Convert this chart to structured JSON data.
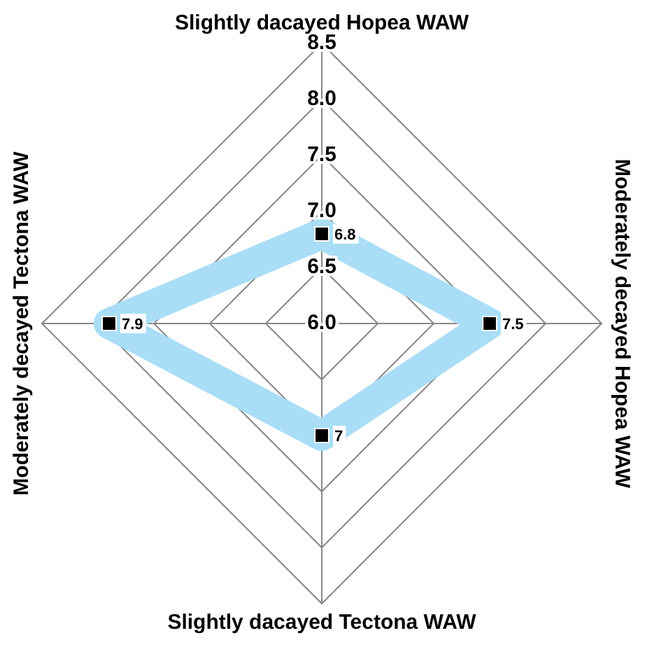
{
  "chart_data": {
    "type": "radar",
    "categories": [
      "Slightly dacayed Hopea WAW",
      "Moderately decayed Hopea WAW",
      "Slightly dacayed Tectona WAW",
      "Moderately decayed Tectona WAW"
    ],
    "series": [
      {
        "color": "#a9def6",
        "values": [
          6.8,
          7.5,
          7,
          7.9
        ]
      }
    ],
    "ylim": [
      6,
      8.5
    ],
    "yticks": [
      {
        "value": 6,
        "label": "6.0"
      },
      {
        "value": 6.5,
        "label": "6.5"
      },
      {
        "value": 7,
        "label": "7.0"
      },
      {
        "value": 7.5,
        "label": "7.5"
      },
      {
        "value": 8,
        "label": "8.0"
      },
      {
        "value": 8.5,
        "label": "8.5"
      }
    ],
    "grid": true,
    "legend": false,
    "marker": "square",
    "data_labels": true
  }
}
